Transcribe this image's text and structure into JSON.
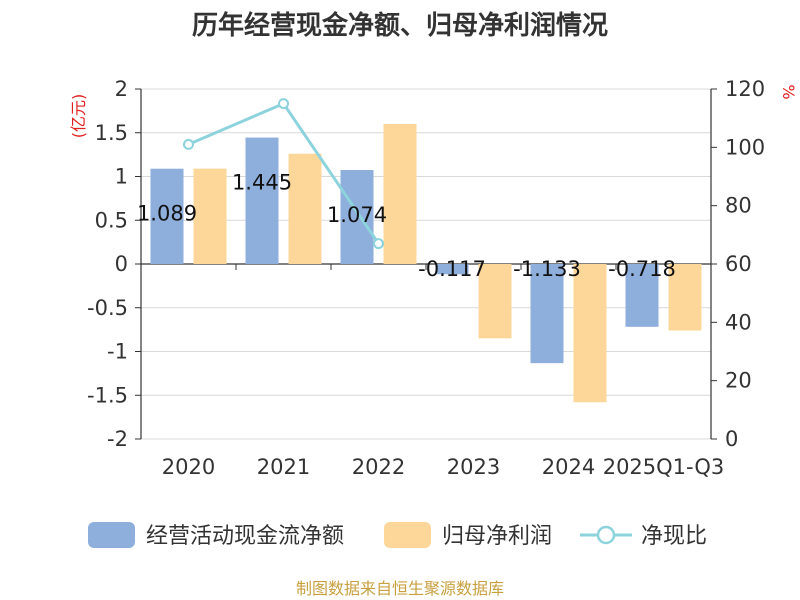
{
  "chart_data": {
    "type": "bar",
    "title": "历年经营现金净额、归母净利润情况",
    "categories": [
      "2020",
      "2021",
      "2022",
      "2023",
      "2024",
      "2025Q1-Q3"
    ],
    "y_left_unit": "(亿元)",
    "y_right_unit": "%",
    "y_left_ticks": [
      "2",
      "1.5",
      "1",
      "0.5",
      "0",
      "-0.5",
      "-1",
      "-1.5",
      "-2"
    ],
    "y_right_ticks": [
      "120",
      "100",
      "80",
      "60",
      "40",
      "20",
      "0"
    ],
    "ylim_left": [
      -2,
      2
    ],
    "ylim_right": [
      0,
      120
    ],
    "series": [
      {
        "name": "经营活动现金流净额",
        "kind": "bar",
        "axis": "left",
        "color": "#8eaedc",
        "values": [
          1.089,
          1.445,
          1.074,
          -0.117,
          -1.133,
          -0.718
        ],
        "labels": [
          "1.089",
          "1.445",
          "1.074",
          "-0.117",
          "-1.133",
          "-0.718"
        ]
      },
      {
        "name": "归母净利润",
        "kind": "bar",
        "axis": "left",
        "color": "#fdd799",
        "values": [
          1.09,
          1.26,
          1.6,
          -0.85,
          -1.58,
          -0.76
        ]
      },
      {
        "name": "净现比",
        "kind": "line",
        "axis": "right",
        "color": "#8dd3dc",
        "values": [
          101,
          115,
          67,
          null,
          null,
          null
        ]
      }
    ],
    "legend_position": "bottom",
    "grid": true,
    "source": "制图数据来自恒生聚源数据库"
  }
}
